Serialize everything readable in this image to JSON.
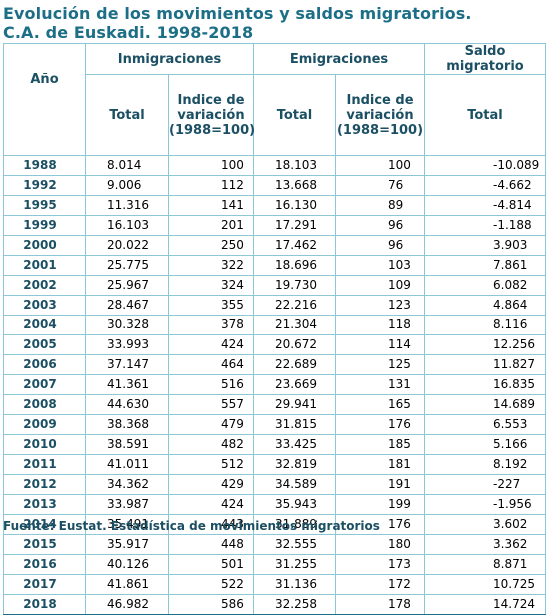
{
  "title": {
    "line1": "Evolución de los movimientos y saldos migratorios.",
    "line2": "C.A. de Euskadi. 1998-2018"
  },
  "headers": {
    "year": "Año",
    "inmigraciones": "Inmigraciones",
    "emigraciones": "Emigraciones",
    "saldo": "Saldo migratorio",
    "total": "Total",
    "indice_l1": "Indice de",
    "indice_l2": "variación",
    "indice_l3": "(1988=100)"
  },
  "rows": [
    {
      "year": "1988",
      "inm_total": "8.014",
      "inm_idx": "100",
      "emi_total": "18.103",
      "emi_idx": "100",
      "saldo": "-10.089"
    },
    {
      "year": "1992",
      "inm_total": "9.006",
      "inm_idx": "112",
      "emi_total": "13.668",
      "emi_idx": "76",
      "saldo": "-4.662"
    },
    {
      "year": "1995",
      "inm_total": "11.316",
      "inm_idx": "141",
      "emi_total": "16.130",
      "emi_idx": "89",
      "saldo": "-4.814"
    },
    {
      "year": "1999",
      "inm_total": "16.103",
      "inm_idx": "201",
      "emi_total": "17.291",
      "emi_idx": "96",
      "saldo": "-1.188"
    },
    {
      "year": "2000",
      "inm_total": "20.022",
      "inm_idx": "250",
      "emi_total": "17.462",
      "emi_idx": "96",
      "saldo": "3.903"
    },
    {
      "year": "2001",
      "inm_total": "25.775",
      "inm_idx": "322",
      "emi_total": "18.696",
      "emi_idx": "103",
      "saldo": "7.861"
    },
    {
      "year": "2002",
      "inm_total": "25.967",
      "inm_idx": "324",
      "emi_total": "19.730",
      "emi_idx": "109",
      "saldo": "6.082"
    },
    {
      "year": "2003",
      "inm_total": "28.467",
      "inm_idx": "355",
      "emi_total": "22.216",
      "emi_idx": "123",
      "saldo": "4.864"
    },
    {
      "year": "2004",
      "inm_total": "30.328",
      "inm_idx": "378",
      "emi_total": "21.304",
      "emi_idx": "118",
      "saldo": "8.116"
    },
    {
      "year": "2005",
      "inm_total": "33.993",
      "inm_idx": "424",
      "emi_total": "20.672",
      "emi_idx": "114",
      "saldo": "12.256"
    },
    {
      "year": "2006",
      "inm_total": "37.147",
      "inm_idx": "464",
      "emi_total": "22.689",
      "emi_idx": "125",
      "saldo": "11.827"
    },
    {
      "year": "2007",
      "inm_total": "41.361",
      "inm_idx": "516",
      "emi_total": "23.669",
      "emi_idx": "131",
      "saldo": "16.835"
    },
    {
      "year": "2008",
      "inm_total": "44.630",
      "inm_idx": "557",
      "emi_total": "29.941",
      "emi_idx": "165",
      "saldo": "14.689"
    },
    {
      "year": "2009",
      "inm_total": "38.368",
      "inm_idx": "479",
      "emi_total": "31.815",
      "emi_idx": "176",
      "saldo": "6.553"
    },
    {
      "year": "2010",
      "inm_total": "38.591",
      "inm_idx": "482",
      "emi_total": "33.425",
      "emi_idx": "185",
      "saldo": "5.166"
    },
    {
      "year": "2011",
      "inm_total": "41.011",
      "inm_idx": "512",
      "emi_total": "32.819",
      "emi_idx": "181",
      "saldo": "8.192"
    },
    {
      "year": "2012",
      "inm_total": "34.362",
      "inm_idx": "429",
      "emi_total": "34.589",
      "emi_idx": "191",
      "saldo": "-227"
    },
    {
      "year": "2013",
      "inm_total": "33.987",
      "inm_idx": "424",
      "emi_total": "35.943",
      "emi_idx": "199",
      "saldo": "-1.956"
    },
    {
      "year": "2014",
      "inm_total": "35.491",
      "inm_idx": "443",
      "emi_total": "31.889",
      "emi_idx": "176",
      "saldo": "3.602"
    },
    {
      "year": "2015",
      "inm_total": "35.917",
      "inm_idx": "448",
      "emi_total": "32.555",
      "emi_idx": "180",
      "saldo": "3.362"
    },
    {
      "year": "2016",
      "inm_total": "40.126",
      "inm_idx": "501",
      "emi_total": "31.255",
      "emi_idx": "173",
      "saldo": "8.871"
    },
    {
      "year": "2017",
      "inm_total": "41.861",
      "inm_idx": "522",
      "emi_total": "31.136",
      "emi_idx": "172",
      "saldo": "10.725"
    },
    {
      "year": "2018",
      "inm_total": "46.982",
      "inm_idx": "586",
      "emi_total": "32.258",
      "emi_idx": "178",
      "saldo": "14.724"
    }
  ],
  "footer": "Fuente: Eustat. Estadística de movimientos migratorios",
  "colors": {
    "title": "#1c6f86",
    "header_text": "#1b4f63",
    "grid": "#8cc7d7"
  }
}
